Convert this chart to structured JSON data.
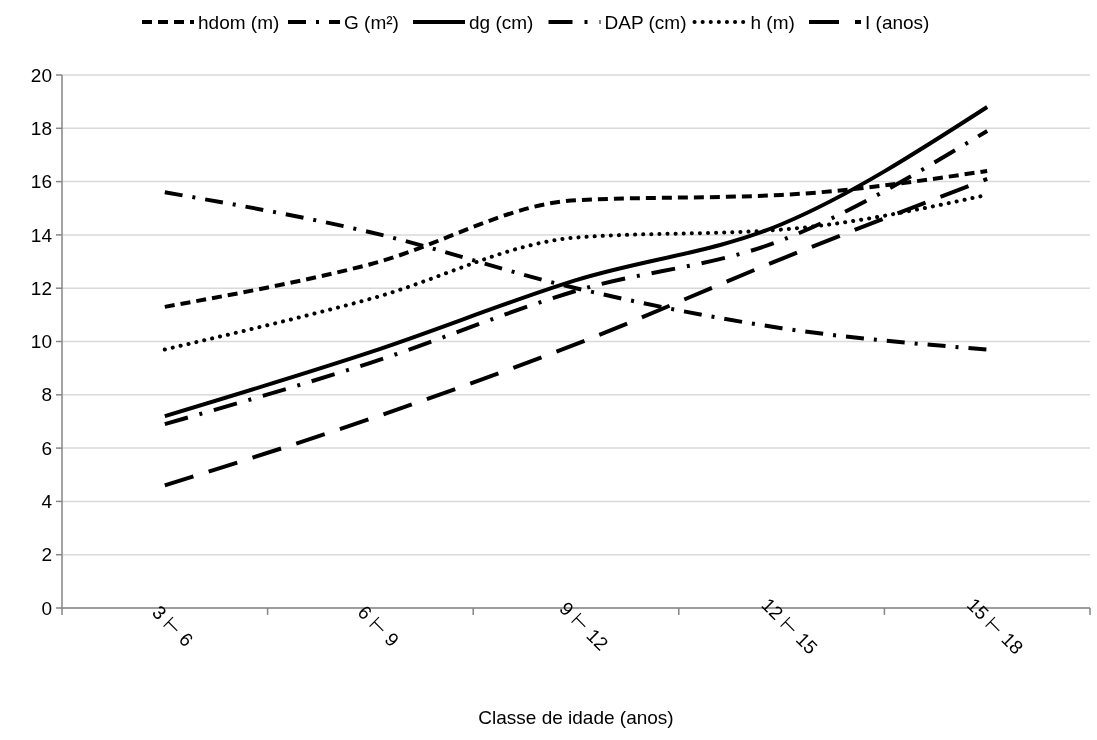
{
  "chart_data": {
    "type": "line",
    "xlabel": "Classe de idade (anos)",
    "categories": [
      "3 ⊢ 6",
      "6 ⊢ 9",
      "9 ⊢ 12",
      "12 ⊢ 15",
      "15 ⊢ 18"
    ],
    "ylim": [
      0,
      20
    ],
    "yticks": [
      0,
      2,
      4,
      6,
      8,
      10,
      12,
      14,
      16,
      18,
      20
    ],
    "grid": "y",
    "legend": "top",
    "marker": "none",
    "series": [
      {
        "name": "hdom (m)",
        "color": "#000000",
        "line_style": "dashed",
        "values": [
          11.3,
          12.9,
          15.3,
          15.5,
          16.4
        ]
      },
      {
        "name": "G (m²)",
        "color": "#000000",
        "line_style": "dashed",
        "values": [
          15.6,
          14.1,
          12.0,
          10.5,
          9.7
        ]
      },
      {
        "name": "dg (cm)",
        "color": "#000000",
        "line_style": "solid",
        "values": [
          7.2,
          9.6,
          12.3,
          14.4,
          18.8
        ]
      },
      {
        "name": "DAP (cm)",
        "color": "#000000",
        "line_style": "dashed",
        "values": [
          6.9,
          9.2,
          11.9,
          13.8,
          17.9
        ]
      },
      {
        "name": "h (m)",
        "color": "#000000",
        "line_style": "dotted",
        "values": [
          9.7,
          11.6,
          13.9,
          14.2,
          15.5
        ]
      },
      {
        "name": "I (anos)",
        "color": "#000000",
        "line_style": "dashed",
        "values": [
          4.6,
          7.1,
          9.9,
          13.1,
          16.1
        ]
      }
    ]
  }
}
